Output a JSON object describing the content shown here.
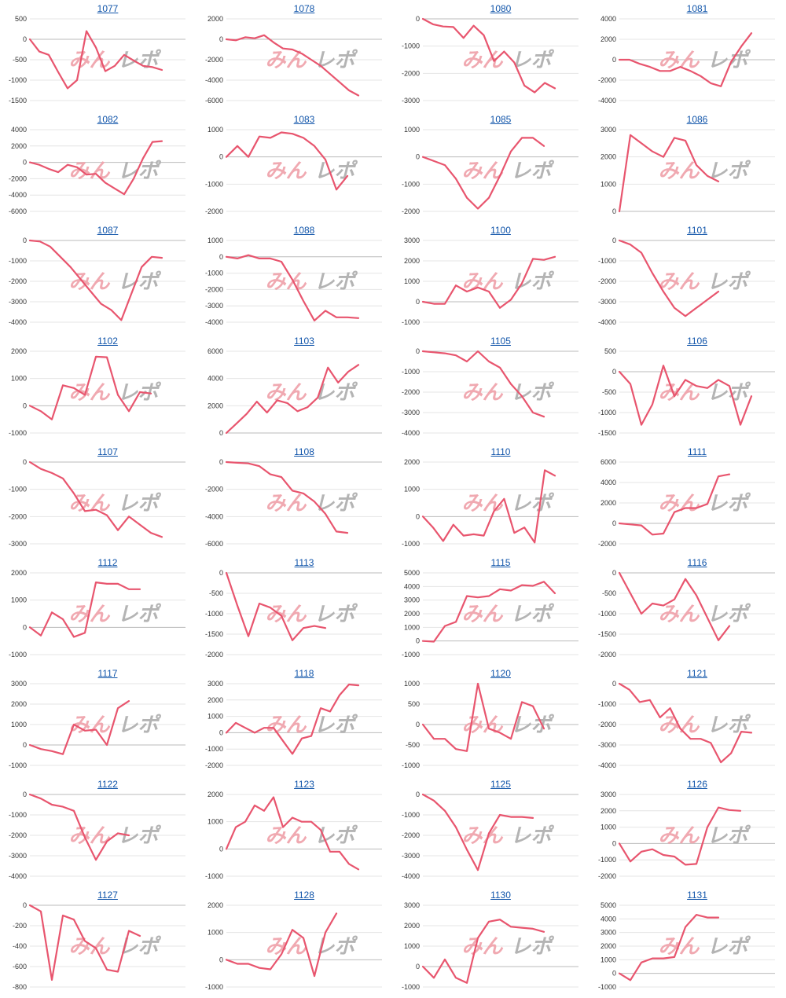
{
  "colors": {
    "line": "#e8556e",
    "title": "#1155aa",
    "grid": "#e4e4e4",
    "axis": "#bbbbbb",
    "watermark_left": "#f0a5ad",
    "watermark_right": "#b0b0b0"
  },
  "watermark": "みんレポ",
  "chart_data": [
    {
      "type": "line",
      "title": "1077",
      "yticks": [
        500,
        0,
        -500,
        -1000,
        -1500
      ],
      "ylim": [
        -1500,
        500
      ],
      "values": [
        0,
        -300,
        -380,
        -800,
        -1200,
        -1000,
        200,
        -200,
        -780,
        -650,
        -380,
        -520,
        -650,
        -680,
        -750
      ]
    },
    {
      "type": "line",
      "title": "1078",
      "yticks": [
        2000,
        0,
        -2000,
        -4000,
        -6000
      ],
      "ylim": [
        -6000,
        2000
      ],
      "values": [
        0,
        -100,
        200,
        100,
        400,
        -300,
        -900,
        -1000,
        -1400,
        -2000,
        -2600,
        -3400,
        -4200,
        -5000,
        -5500
      ]
    },
    {
      "type": "line",
      "title": "1080",
      "yticks": [
        0,
        -1000,
        -2000,
        -3000
      ],
      "ylim": [
        -3000,
        0
      ],
      "values": [
        0,
        -200,
        -280,
        -300,
        -700,
        -250,
        -600,
        -1550,
        -1200,
        -1600,
        -2450,
        -2700,
        -2350,
        -2550
      ]
    },
    {
      "type": "line",
      "title": "1081",
      "yticks": [
        4000,
        2000,
        0,
        -2000,
        -4000
      ],
      "ylim": [
        -4000,
        4000
      ],
      "values": [
        0,
        0,
        -400,
        -700,
        -1100,
        -1100,
        -700,
        -1100,
        -1600,
        -2300,
        -2600,
        -200,
        1300,
        2600
      ]
    },
    {
      "type": "line",
      "title": "1082",
      "yticks": [
        4000,
        2000,
        0,
        -2000,
        -4000,
        -6000
      ],
      "ylim": [
        -6000,
        4000
      ],
      "values": [
        0,
        -300,
        -800,
        -1200,
        -300,
        -600,
        -1500,
        -1400,
        -2500,
        -3200,
        -3900,
        -2000,
        500,
        2500,
        2600
      ]
    },
    {
      "type": "line",
      "title": "1083",
      "yticks": [
        1000,
        0,
        -1000,
        -2000
      ],
      "ylim": [
        -2000,
        1000
      ],
      "values": [
        0,
        400,
        0,
        750,
        700,
        900,
        850,
        700,
        400,
        -100,
        -1200,
        -700
      ]
    },
    {
      "type": "line",
      "title": "1085",
      "yticks": [
        1000,
        0,
        -1000,
        -2000
      ],
      "ylim": [
        -2000,
        1000
      ],
      "values": [
        0,
        -150,
        -300,
        -800,
        -1500,
        -1900,
        -1500,
        -700,
        200,
        700,
        700,
        400
      ]
    },
    {
      "type": "line",
      "title": "1086",
      "yticks": [
        3000,
        2000,
        1000,
        0
      ],
      "ylim": [
        0,
        3000
      ],
      "values": [
        0,
        2800,
        2500,
        2200,
        2000,
        2700,
        2600,
        1700,
        1300,
        1100
      ]
    },
    {
      "type": "line",
      "title": "1087",
      "yticks": [
        0,
        -1000,
        -2000,
        -3000,
        -4000
      ],
      "ylim": [
        -4000,
        0
      ],
      "values": [
        0,
        -50,
        -300,
        -800,
        -1300,
        -1900,
        -2500,
        -3100,
        -3400,
        -3900,
        -2600,
        -1300,
        -800,
        -850
      ]
    },
    {
      "type": "line",
      "title": "1088",
      "yticks": [
        1000,
        0,
        -1000,
        -2000,
        -3000,
        -4000
      ],
      "ylim": [
        -4000,
        1000
      ],
      "values": [
        0,
        -100,
        100,
        -100,
        -100,
        -300,
        -1400,
        -2700,
        -3900,
        -3300,
        -3700,
        -3700,
        -3750
      ]
    },
    {
      "type": "line",
      "title": "1100",
      "yticks": [
        3000,
        2000,
        1000,
        0,
        -1000
      ],
      "ylim": [
        -1000,
        3000
      ],
      "values": [
        0,
        -100,
        -100,
        800,
        500,
        700,
        500,
        -300,
        100,
        900,
        2100,
        2050,
        2200
      ]
    },
    {
      "type": "line",
      "title": "1101",
      "yticks": [
        0,
        -1000,
        -2000,
        -3000,
        -4000
      ],
      "ylim": [
        -4000,
        0
      ],
      "values": [
        0,
        -200,
        -600,
        -1600,
        -2500,
        -3300,
        -3700,
        -3300,
        -2900,
        -2500
      ]
    },
    {
      "type": "line",
      "title": "1102",
      "yticks": [
        2000,
        1000,
        0,
        -1000
      ],
      "ylim": [
        -1000,
        2000
      ],
      "values": [
        0,
        -200,
        -500,
        750,
        650,
        400,
        1800,
        1780,
        400,
        -200,
        500,
        450
      ]
    },
    {
      "type": "line",
      "title": "1103",
      "yticks": [
        6000,
        4000,
        2000,
        0
      ],
      "ylim": [
        0,
        6000
      ],
      "values": [
        0,
        700,
        1400,
        2300,
        1500,
        2400,
        2200,
        1600,
        1900,
        2600,
        4800,
        3700,
        4500,
        5000
      ]
    },
    {
      "type": "line",
      "title": "1105",
      "yticks": [
        0,
        -1000,
        -2000,
        -3000,
        -4000
      ],
      "ylim": [
        -4000,
        0
      ],
      "values": [
        0,
        -50,
        -100,
        -200,
        -500,
        0,
        -500,
        -800,
        -1600,
        -2200,
        -3000,
        -3200
      ]
    },
    {
      "type": "line",
      "title": "1106",
      "yticks": [
        500,
        0,
        -500,
        -1000,
        -1500
      ],
      "ylim": [
        -1500,
        500
      ],
      "values": [
        0,
        -300,
        -1300,
        -800,
        150,
        -600,
        -200,
        -350,
        -400,
        -200,
        -350,
        -1300,
        -600
      ]
    },
    {
      "type": "line",
      "title": "1107",
      "yticks": [
        0,
        -1000,
        -2000,
        -3000
      ],
      "ylim": [
        -3000,
        0
      ],
      "values": [
        0,
        -250,
        -400,
        -600,
        -1150,
        -1800,
        -1750,
        -1950,
        -2500,
        -2000,
        -2300,
        -2600,
        -2750
      ]
    },
    {
      "type": "line",
      "title": "1108",
      "yticks": [
        0,
        -2000,
        -4000,
        -6000
      ],
      "ylim": [
        -6000,
        0
      ],
      "values": [
        0,
        -50,
        -100,
        -300,
        -900,
        -1100,
        -2100,
        -2300,
        -2900,
        -3800,
        -5100,
        -5200
      ]
    },
    {
      "type": "line",
      "title": "1110",
      "yticks": [
        2000,
        1000,
        0,
        -1000
      ],
      "ylim": [
        -1000,
        2000
      ],
      "values": [
        0,
        -400,
        -900,
        -300,
        -700,
        -650,
        -700,
        200,
        650,
        -600,
        -400,
        -950,
        1700,
        1500
      ]
    },
    {
      "type": "line",
      "title": "1111",
      "yticks": [
        6000,
        4000,
        2000,
        0,
        -2000
      ],
      "ylim": [
        -2000,
        6000
      ],
      "values": [
        0,
        -100,
        -200,
        -1100,
        -1000,
        1100,
        1500,
        1500,
        1900,
        4600,
        4800
      ]
    },
    {
      "type": "line",
      "title": "1112",
      "yticks": [
        2000,
        1000,
        0,
        -1000
      ],
      "ylim": [
        -1000,
        2000
      ],
      "values": [
        0,
        -300,
        550,
        300,
        -350,
        -200,
        1650,
        1600,
        1600,
        1400,
        1400
      ]
    },
    {
      "type": "line",
      "title": "1113",
      "yticks": [
        0,
        -500,
        -1000,
        -1500,
        -2000
      ],
      "ylim": [
        -2000,
        0
      ],
      "values": [
        0,
        -800,
        -1550,
        -750,
        -850,
        -1050,
        -1650,
        -1350,
        -1300,
        -1350
      ]
    },
    {
      "type": "line",
      "title": "1115",
      "yticks": [
        5000,
        4000,
        3000,
        2000,
        1000,
        0,
        -1000
      ],
      "ylim": [
        -1000,
        5000
      ],
      "values": [
        0,
        -50,
        1100,
        1400,
        3300,
        3200,
        3300,
        3800,
        3700,
        4100,
        4050,
        4350,
        3500
      ]
    },
    {
      "type": "line",
      "title": "1116",
      "yticks": [
        0,
        -500,
        -1000,
        -1500,
        -2000
      ],
      "ylim": [
        -2000,
        0
      ],
      "values": [
        0,
        -500,
        -1000,
        -750,
        -800,
        -650,
        -150,
        -550,
        -1100,
        -1650,
        -1300
      ]
    },
    {
      "type": "line",
      "title": "1117",
      "yticks": [
        3000,
        2000,
        1000,
        0,
        -1000
      ],
      "ylim": [
        -1000,
        3000
      ],
      "values": [
        0,
        -200,
        -300,
        -450,
        1000,
        700,
        750,
        0,
        1800,
        2150
      ]
    },
    {
      "type": "line",
      "title": "1118",
      "yticks": [
        3000,
        2000,
        1000,
        0,
        -1000,
        -2000
      ],
      "ylim": [
        -2000,
        3000
      ],
      "values": [
        0,
        600,
        300,
        0,
        300,
        300,
        -500,
        -1300,
        -350,
        -200,
        1500,
        1300,
        2300,
        2950,
        2900
      ]
    },
    {
      "type": "line",
      "title": "1120",
      "yticks": [
        1000,
        500,
        0,
        -500,
        -1000
      ],
      "ylim": [
        -1000,
        1000
      ],
      "values": [
        0,
        -350,
        -350,
        -600,
        -650,
        1000,
        -100,
        -200,
        -350,
        550,
        450,
        -100
      ]
    },
    {
      "type": "line",
      "title": "1121",
      "yticks": [
        0,
        -1000,
        -2000,
        -3000,
        -4000
      ],
      "ylim": [
        -4000,
        0
      ],
      "values": [
        0,
        -300,
        -900,
        -800,
        -1650,
        -1200,
        -2200,
        -2700,
        -2700,
        -2900,
        -3850,
        -3400,
        -2350,
        -2400
      ]
    },
    {
      "type": "line",
      "title": "1122",
      "yticks": [
        0,
        -1000,
        -2000,
        -3000,
        -4000
      ],
      "ylim": [
        -4000,
        0
      ],
      "values": [
        0,
        -200,
        -500,
        -600,
        -800,
        -2100,
        -3200,
        -2300,
        -1900,
        -2000
      ]
    },
    {
      "type": "line",
      "title": "1123",
      "yticks": [
        2000,
        1000,
        0,
        -1000
      ],
      "ylim": [
        -1000,
        2000
      ],
      "values": [
        0,
        800,
        1000,
        1600,
        1400,
        1900,
        800,
        1150,
        1000,
        1000,
        700,
        -100,
        -100,
        -550,
        -750
      ]
    },
    {
      "type": "line",
      "title": "1125",
      "yticks": [
        0,
        -1000,
        -2000,
        -3000,
        -4000
      ],
      "ylim": [
        -4000,
        0
      ],
      "values": [
        0,
        -300,
        -800,
        -1600,
        -2700,
        -3700,
        -1900,
        -1000,
        -1100,
        -1100,
        -1150
      ]
    },
    {
      "type": "line",
      "title": "1126",
      "yticks": [
        3000,
        2000,
        1000,
        0,
        -1000,
        -2000
      ],
      "ylim": [
        -2000,
        3000
      ],
      "values": [
        0,
        -1100,
        -500,
        -350,
        -700,
        -800,
        -1300,
        -1250,
        1000,
        2200,
        2050,
        2000
      ]
    },
    {
      "type": "line",
      "title": "1127",
      "yticks": [
        0,
        -200,
        -400,
        -600,
        -800
      ],
      "ylim": [
        -800,
        0
      ],
      "values": [
        0,
        -60,
        -730,
        -100,
        -140,
        -350,
        -420,
        -630,
        -650,
        -250,
        -300
      ]
    },
    {
      "type": "line",
      "title": "1128",
      "yticks": [
        2000,
        1000,
        0,
        -1000
      ],
      "ylim": [
        -1000,
        2000
      ],
      "values": [
        0,
        -150,
        -150,
        -300,
        -350,
        200,
        1100,
        800,
        -600,
        1000,
        1700
      ]
    },
    {
      "type": "line",
      "title": "1130",
      "yticks": [
        3000,
        2000,
        1000,
        0,
        -1000
      ],
      "ylim": [
        -1000,
        3000
      ],
      "values": [
        0,
        -550,
        350,
        -550,
        -800,
        1400,
        2200,
        2300,
        1950,
        1900,
        1850,
        1700
      ]
    },
    {
      "type": "line",
      "title": "1131",
      "yticks": [
        5000,
        4000,
        3000,
        2000,
        1000,
        0,
        -1000
      ],
      "ylim": [
        -1000,
        5000
      ],
      "values": [
        0,
        -500,
        800,
        1100,
        1100,
        1200,
        3400,
        4300,
        4100,
        4100
      ]
    }
  ]
}
